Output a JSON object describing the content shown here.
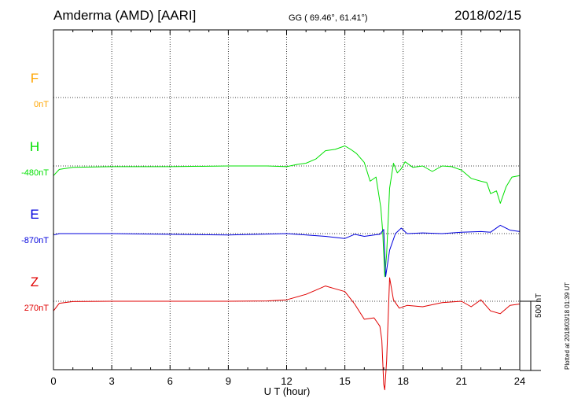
{
  "header": {
    "station": "Amderma (AMD)  [AARI]",
    "coords": "GG ( 69.46°,  61.41°)",
    "date": "2018/02/15"
  },
  "footer": {
    "plotted": "Plotted at 2018/03/18 01:39 UT"
  },
  "scale_bar": {
    "label": "500 nT",
    "value_nT": 500
  },
  "colors": {
    "F": "#ffa500",
    "H": "#00e000",
    "E": "#0000dd",
    "Z": "#e00000"
  },
  "chart_data": {
    "type": "line",
    "title": "",
    "xlabel": "U T (hour)",
    "ylabel": "",
    "xlim": [
      0,
      24
    ],
    "xticks": [
      0,
      3,
      6,
      9,
      12,
      15,
      18,
      21,
      24
    ],
    "grid": true,
    "panels": [
      {
        "name": "F",
        "offset_label": "0nT",
        "baseline_nT": 0,
        "values": []
      },
      {
        "name": "H",
        "offset_label": "-480nT",
        "baseline_nT": -480,
        "x": [
          0,
          0.3,
          1,
          3,
          6,
          9,
          11,
          12,
          12.5,
          13,
          13.5,
          14,
          14.5,
          15,
          15.3,
          15.6,
          16,
          16.3,
          16.6,
          16.85,
          16.95,
          17.05,
          17.15,
          17.3,
          17.5,
          17.7,
          17.9,
          18.1,
          18.5,
          19,
          19.5,
          20,
          20.5,
          21,
          21.5,
          22,
          22.3,
          22.5,
          22.8,
          23,
          23.3,
          23.6,
          24
        ],
        "values": [
          -550,
          -505,
          -490,
          -485,
          -485,
          -480,
          -480,
          -485,
          -470,
          -460,
          -430,
          -370,
          -360,
          -335,
          -360,
          -390,
          -455,
          -590,
          -560,
          -780,
          -960,
          -1280,
          -1120,
          -640,
          -460,
          -530,
          -500,
          -450,
          -490,
          -480,
          -520,
          -480,
          -485,
          -510,
          -570,
          -590,
          -600,
          -680,
          -660,
          -750,
          -630,
          -560,
          -550
        ]
      },
      {
        "name": "E",
        "offset_label": "-870nT",
        "baseline_nT": -870,
        "x": [
          0,
          0.3,
          1,
          3,
          6,
          9,
          12,
          14,
          15,
          15.5,
          16,
          16.5,
          16.8,
          17,
          17.1,
          17.3,
          17.6,
          17.9,
          18.2,
          19,
          20,
          21,
          22,
          22.5,
          23,
          23.5,
          24
        ],
        "values": [
          -880,
          -870,
          -870,
          -870,
          -875,
          -880,
          -870,
          -890,
          -905,
          -875,
          -890,
          -880,
          -875,
          -840,
          -1180,
          -990,
          -870,
          -830,
          -870,
          -865,
          -870,
          -860,
          -855,
          -860,
          -810,
          -845,
          -855
        ]
      },
      {
        "name": "Z",
        "offset_label": "270nT",
        "baseline_nT": 270,
        "x": [
          0,
          0.3,
          1,
          3,
          6,
          9,
          11,
          12,
          13,
          13.5,
          14,
          14.5,
          15,
          15.5,
          16,
          16.5,
          16.8,
          16.9,
          17,
          17.05,
          17.15,
          17.3,
          17.5,
          17.8,
          18.2,
          19,
          20,
          21,
          21.5,
          22,
          22.5,
          23,
          23.5,
          24
        ],
        "values": [
          200,
          255,
          268,
          270,
          270,
          270,
          272,
          280,
          320,
          350,
          380,
          360,
          340,
          250,
          140,
          150,
          90,
          -10,
          -330,
          -370,
          -160,
          440,
          280,
          220,
          240,
          230,
          260,
          270,
          230,
          280,
          200,
          180,
          240,
          250
        ]
      }
    ]
  }
}
